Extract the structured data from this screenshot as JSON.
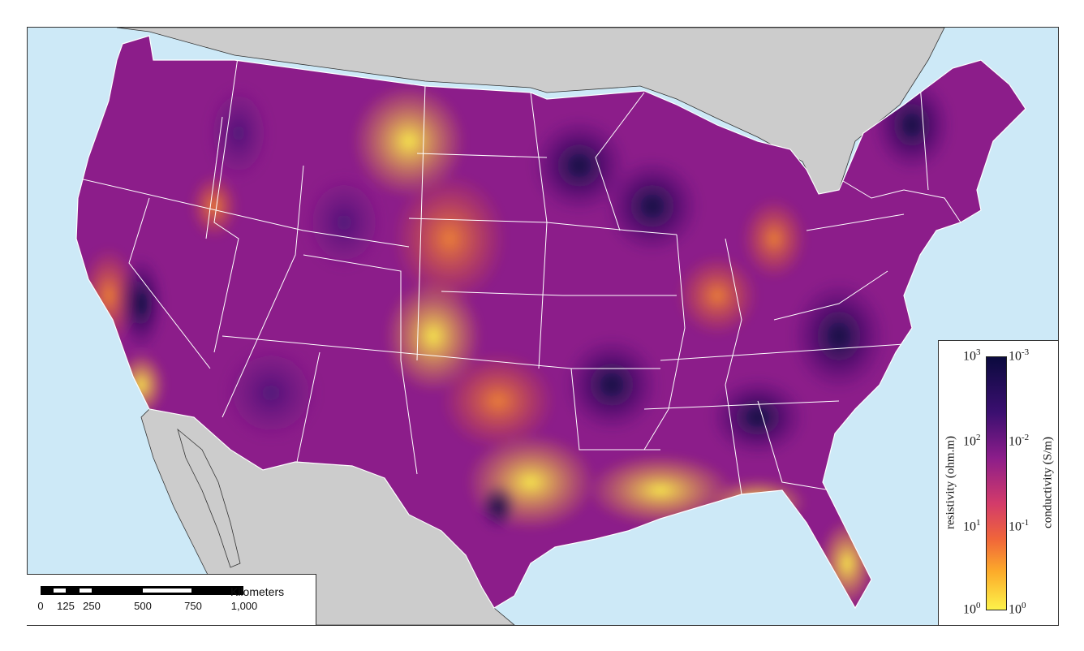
{
  "map": {
    "colors": {
      "water": "#cde9f7",
      "land": "#cccccc",
      "high_resistivity": "#0b0a3e",
      "mid": "#8c1d8a",
      "low_resistivity": "#fcf24a",
      "state_lines": "#ffffff"
    }
  },
  "scalebar": {
    "unit": "Kilometers",
    "ticks": [
      "0",
      "125",
      "250",
      "500",
      "750",
      "1,000"
    ]
  },
  "legend": {
    "left_title": "resistivity (ohm.m)",
    "right_title": "conductivity (S/m)",
    "left_labels": [
      {
        "base": "10",
        "exp": "3"
      },
      {
        "base": "10",
        "exp": "2"
      },
      {
        "base": "10",
        "exp": "1"
      },
      {
        "base": "10",
        "exp": "0"
      }
    ],
    "right_labels": [
      {
        "base": "10",
        "exp": "-3"
      },
      {
        "base": "10",
        "exp": "-2"
      },
      {
        "base": "10",
        "exp": "-1"
      },
      {
        "base": "10",
        "exp": "0"
      }
    ]
  }
}
